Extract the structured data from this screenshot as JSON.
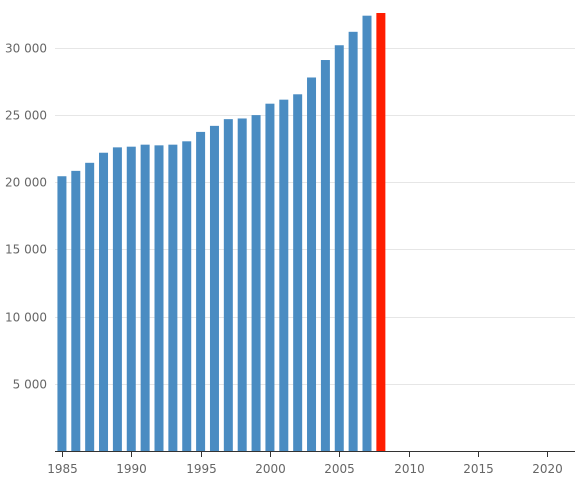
{
  "chart_data": {
    "type": "bar",
    "title": "",
    "xlabel": "",
    "ylabel": "",
    "x": [
      1985,
      1986,
      1987,
      1988,
      1989,
      1990,
      1991,
      1992,
      1993,
      1994,
      1995,
      1996,
      1997,
      1998,
      1999,
      2000,
      2001,
      2002,
      2003,
      2004,
      2005,
      2006,
      2007,
      2008
    ],
    "values": [
      20450,
      20850,
      21450,
      22200,
      22600,
      22650,
      22800,
      22750,
      22800,
      23050,
      23750,
      24200,
      24700,
      24750,
      25000,
      25850,
      26150,
      26550,
      27800,
      29100,
      30200,
      31200,
      32400,
      32600
    ],
    "highlight_index": 23,
    "colors": {
      "default": "#4a8cc2",
      "highlight": "#ff1d00"
    },
    "xlim": [
      1984.5,
      2022
    ],
    "ylim": [
      0,
      32600
    ],
    "x_ticks": [
      1985,
      1990,
      1995,
      2000,
      2005,
      2010,
      2015,
      2020
    ],
    "y_ticks": [
      5000,
      10000,
      15000,
      20000,
      25000,
      30000
    ],
    "y_tick_labels": [
      "5 000",
      "10 000",
      "15 000",
      "20 000",
      "25 000",
      "30 000"
    ],
    "grid": true,
    "legend": "none"
  }
}
